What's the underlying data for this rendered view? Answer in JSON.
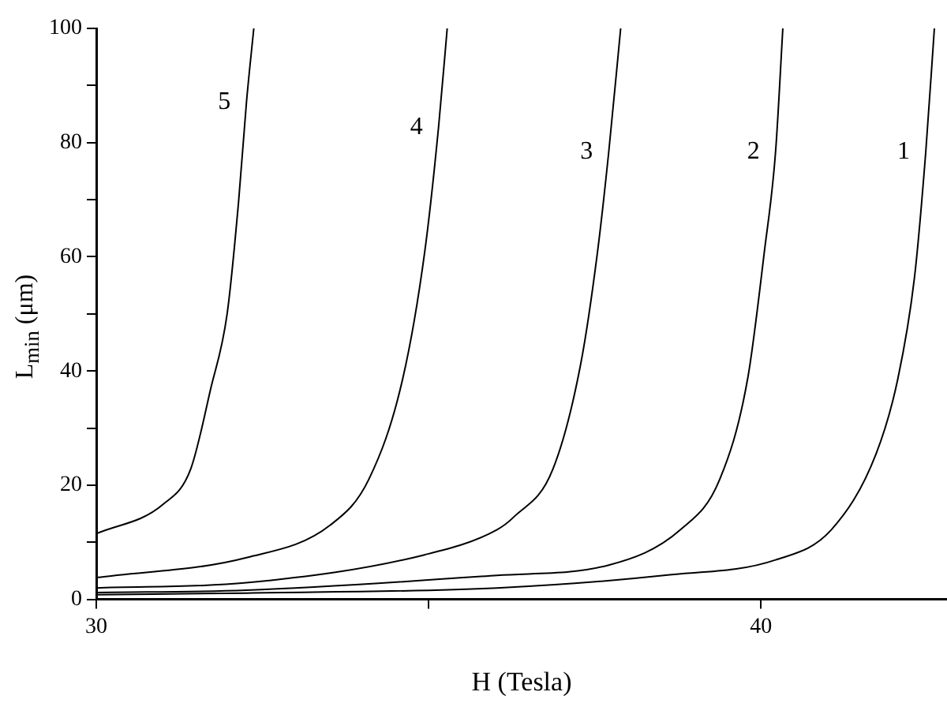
{
  "chart_data": {
    "type": "line",
    "xlabel": "H (Tesla)",
    "ylabel": "L$_{min}$ (μm)",
    "xlim": [
      30,
      42.8
    ],
    "xticks": [
      30,
      {
        "value": 35,
        "label": null
      },
      40
    ],
    "ylim": [
      0,
      100
    ],
    "yticks": [
      0,
      {
        "value": 10,
        "label": null
      },
      20,
      {
        "value": 30,
        "label": null
      },
      40,
      {
        "value": 50,
        "label": null
      },
      60,
      {
        "value": 70,
        "label": null
      },
      80,
      {
        "value": 90,
        "label": null
      },
      100
    ],
    "grid": false,
    "legend": false,
    "marker": "none",
    "line_style": "solid",
    "series": [
      {
        "name": "1",
        "color": "#000000",
        "x": [
          30,
          32.26,
          36.03,
          38.54,
          40.22,
          41.06,
          41.73,
          42.06,
          42.31,
          42.48,
          42.61
        ],
        "values": [
          0.8,
          1.1,
          2.0,
          4.2,
          6.9,
          12.2,
          25.4,
          38.6,
          56.3,
          78.3,
          100
        ]
      },
      {
        "name": "2",
        "color": "#000000",
        "x": [
          30,
          32.26,
          36.03,
          37.71,
          38.79,
          39.38,
          39.8,
          40.05,
          40.22,
          40.33
        ],
        "values": [
          1.2,
          1.6,
          4.2,
          6.0,
          12.2,
          21.0,
          38.6,
          60.7,
          78.3,
          100
        ]
      },
      {
        "name": "3",
        "color": "#000000",
        "x": [
          30,
          32.26,
          34.94,
          36.03,
          36.28,
          36.87,
          37.29,
          37.54,
          37.71,
          37.89
        ],
        "values": [
          2.0,
          2.9,
          7.8,
          12.2,
          14.4,
          22.8,
          41.3,
          60.7,
          78.3,
          100
        ]
      },
      {
        "name": "4",
        "color": "#000000",
        "x": [
          30,
          32.26,
          33.52,
          34.1,
          34.61,
          34.94,
          35.15,
          35.28
        ],
        "values": [
          3.8,
          7.3,
          13.0,
          21.0,
          38.6,
          60.7,
          82.7,
          100
        ]
      },
      {
        "name": "5",
        "color": "#000000",
        "x": [
          30,
          31.0,
          31.42,
          31.72,
          31.97,
          32.14,
          32.26,
          32.37
        ],
        "values": [
          11.5,
          16.6,
          22.8,
          36.8,
          50.1,
          69.5,
          87.1,
          100
        ]
      }
    ]
  }
}
